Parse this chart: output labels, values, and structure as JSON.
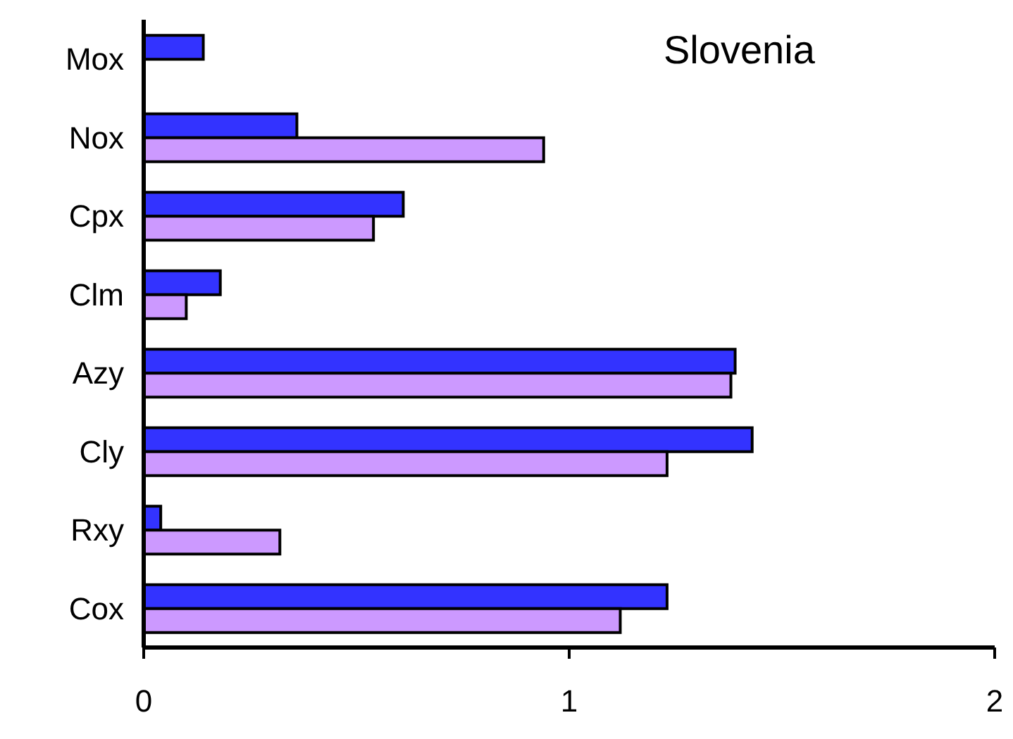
{
  "chart_data": {
    "type": "bar",
    "orientation": "horizontal",
    "title": "Slovenia",
    "categories": [
      "Mox",
      "Nox",
      "Cpx",
      "Clm",
      "Azy",
      "Cly",
      "Rxy",
      "Cox"
    ],
    "series": [
      {
        "color": "#3333ff",
        "values": [
          0.14,
          0.36,
          0.61,
          0.18,
          1.39,
          1.43,
          0.04,
          1.23
        ]
      },
      {
        "color": "#cc99ff",
        "values": [
          null,
          0.94,
          0.54,
          0.1,
          1.38,
          1.23,
          0.32,
          1.12
        ]
      }
    ],
    "xlim": [
      0,
      2
    ],
    "xticks": [
      0,
      1,
      2
    ],
    "grid": false,
    "legend": false
  }
}
